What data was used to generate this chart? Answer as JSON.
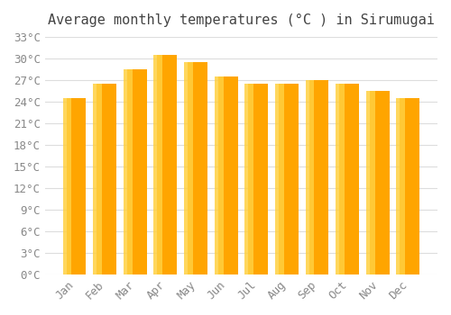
{
  "title": "Average monthly temperatures (°C ) in Sirumugai",
  "months": [
    "Jan",
    "Feb",
    "Mar",
    "Apr",
    "May",
    "Jun",
    "Jul",
    "Aug",
    "Sep",
    "Oct",
    "Nov",
    "Dec"
  ],
  "values": [
    24.5,
    26.5,
    28.5,
    30.5,
    29.5,
    27.5,
    26.5,
    26.5,
    27.0,
    26.5,
    25.5,
    24.5
  ],
  "bar_color_main": "#FFA500",
  "bar_color_light": "#FFD040",
  "ylim": [
    0,
    33
  ],
  "ytick_step": 3,
  "background_color": "#FFFFFF",
  "plot_bg_color": "#FFFFFF",
  "grid_color": "#DDDDDD",
  "title_fontsize": 11,
  "tick_fontsize": 9,
  "title_font_family": "monospace",
  "tick_font_family": "monospace"
}
